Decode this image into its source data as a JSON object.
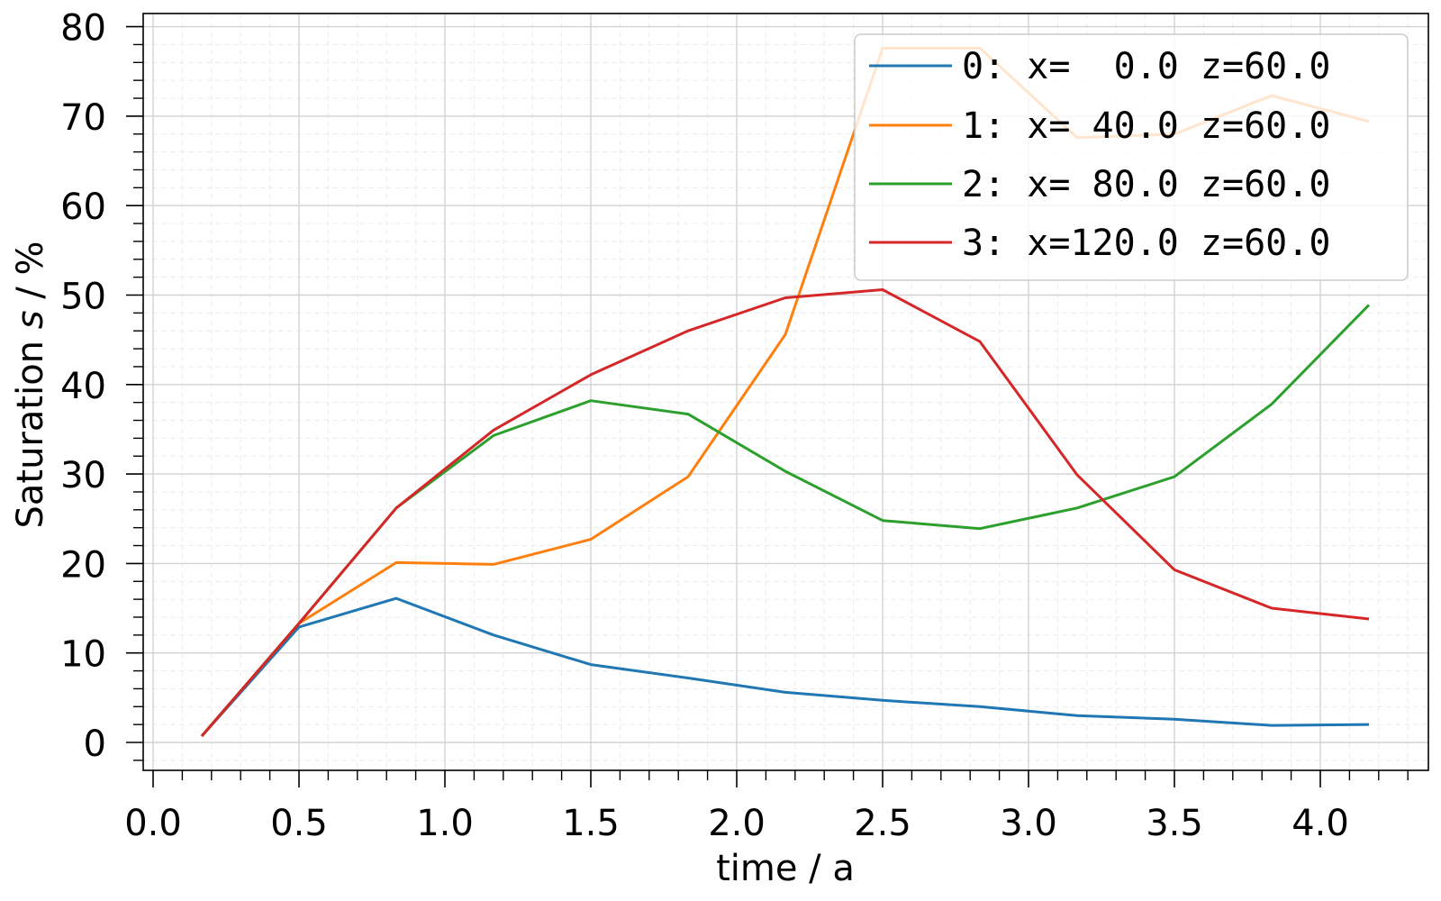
{
  "chart_data": {
    "type": "line",
    "title": "",
    "xlabel": "time / a",
    "ylabel": "Saturation s / %",
    "ylabel_parts": {
      "prefix": "Saturation ",
      "italic": "s",
      "suffix": " / %"
    },
    "xlim": [
      -0.03,
      4.35
    ],
    "ylim": [
      -3,
      81.5
    ],
    "xticks": [
      0.0,
      0.5,
      1.0,
      1.5,
      2.0,
      2.5,
      3.0,
      3.5,
      4.0
    ],
    "xtick_labels": [
      "0.0",
      "0.5",
      "1.0",
      "1.5",
      "2.0",
      "2.5",
      "3.0",
      "3.5",
      "4.0"
    ],
    "yticks": [
      0,
      10,
      20,
      30,
      40,
      50,
      60,
      70,
      80
    ],
    "ytick_labels": [
      "0",
      "10",
      "20",
      "30",
      "40",
      "50",
      "60",
      "70",
      "80"
    ],
    "x_minor_step": 0.1,
    "y_minor_step": 2,
    "grid": {
      "major": true,
      "minor": true
    },
    "legend_position": "upper right",
    "x": [
      0.1667,
      0.5,
      0.8333,
      1.1667,
      1.5,
      1.8333,
      2.1667,
      2.5,
      2.8333,
      3.1667,
      3.5,
      3.8333,
      4.1667
    ],
    "series": [
      {
        "name": "0: x=  0.0 z=60.0",
        "color": "#1f77b4",
        "values": [
          0.7,
          12.9,
          16.1,
          12.0,
          8.7,
          7.2,
          5.6,
          4.7,
          4.0,
          3.0,
          2.6,
          1.9,
          2.0
        ]
      },
      {
        "name": "1: x= 40.0 z=60.0",
        "color": "#ff7f0e",
        "values": [
          0.7,
          13.3,
          20.1,
          19.9,
          22.7,
          29.7,
          45.6,
          77.6,
          77.6,
          67.6,
          68.0,
          72.3,
          69.4
        ]
      },
      {
        "name": "2: x= 80.0 z=60.0",
        "color": "#2ca02c",
        "values": [
          0.7,
          13.3,
          26.2,
          34.3,
          38.2,
          36.7,
          30.3,
          24.8,
          23.9,
          26.2,
          29.7,
          37.8,
          48.9
        ]
      },
      {
        "name": "3: x=120.0 z=60.0",
        "color": "#d62728",
        "values": [
          0.7,
          13.3,
          26.2,
          34.9,
          41.1,
          46.0,
          49.7,
          50.6,
          44.8,
          29.9,
          19.3,
          15.0,
          13.8
        ]
      }
    ]
  }
}
